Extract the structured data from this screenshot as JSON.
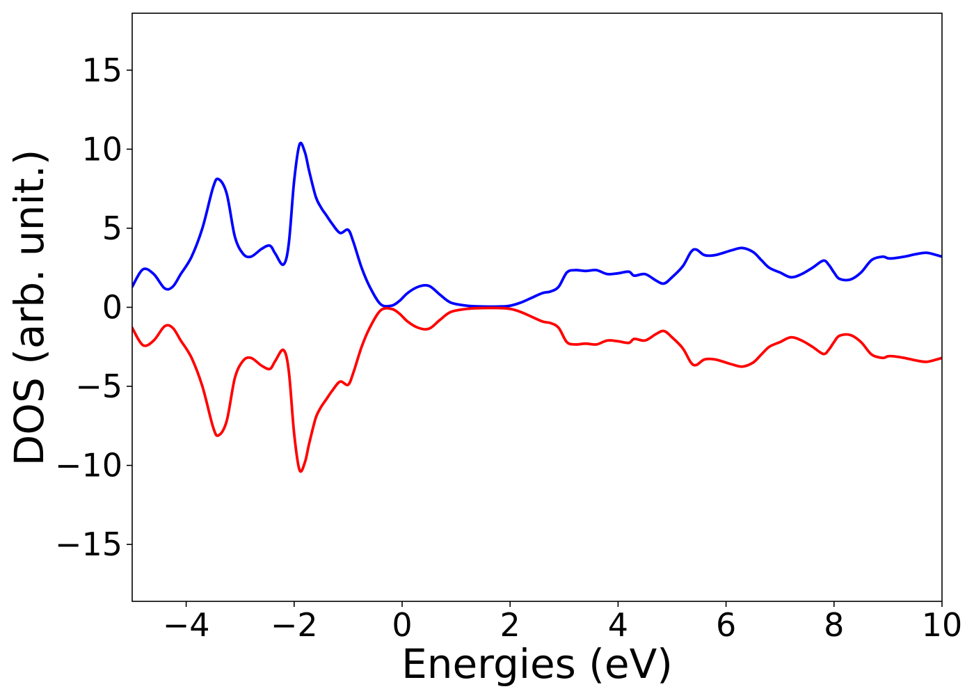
{
  "chart_data": {
    "type": "line",
    "title": "",
    "xlabel": "Energies (eV)",
    "ylabel": "DOS (arb. unit.)",
    "xlim": [
      -5,
      10
    ],
    "ylim": [
      -18.6,
      18.6
    ],
    "xticks": [
      -4,
      -2,
      0,
      2,
      4,
      6,
      8,
      10
    ],
    "xtick_labels": [
      "−4",
      "−2",
      "0",
      "2",
      "4",
      "6",
      "8",
      "10"
    ],
    "yticks": [
      -15,
      -10,
      -5,
      0,
      5,
      10,
      15
    ],
    "ytick_labels": [
      "−15",
      "−10",
      "−5",
      "0",
      "5",
      "10",
      "15"
    ],
    "grid": false,
    "legend": "none",
    "series": [
      {
        "color": "#0000ff",
        "x": [
          -5.0,
          -4.8,
          -4.6,
          -4.4,
          -4.25,
          -4.1,
          -3.9,
          -3.7,
          -3.5,
          -3.4,
          -3.25,
          -3.1,
          -2.95,
          -2.8,
          -2.6,
          -2.45,
          -2.35,
          -2.2,
          -2.1,
          -2.0,
          -1.9,
          -1.8,
          -1.72,
          -1.6,
          -1.5,
          -1.4,
          -1.3,
          -1.15,
          -1.0,
          -0.9,
          -0.75,
          -0.6,
          -0.4,
          -0.2,
          -0.05,
          0.1,
          0.3,
          0.5,
          0.7,
          0.9,
          1.2,
          1.5,
          1.8,
          2.0,
          2.2,
          2.4,
          2.6,
          2.75,
          2.9,
          3.05,
          3.2,
          3.4,
          3.6,
          3.8,
          4.0,
          4.2,
          4.3,
          4.5,
          4.7,
          4.85,
          5.0,
          5.2,
          5.35,
          5.45,
          5.6,
          5.8,
          6.1,
          6.3,
          6.5,
          6.65,
          6.8,
          7.0,
          7.2,
          7.4,
          7.6,
          7.8,
          7.9,
          8.0,
          8.1,
          8.3,
          8.5,
          8.7,
          8.9,
          9.0,
          9.1,
          9.3,
          9.5,
          9.7,
          9.85,
          10.0
        ],
        "y": [
          1.3,
          2.4,
          2.1,
          1.2,
          1.3,
          2.1,
          3.2,
          5.0,
          7.6,
          8.1,
          7.2,
          4.5,
          3.4,
          3.2,
          3.7,
          3.9,
          3.4,
          2.7,
          4.0,
          8.0,
          10.3,
          9.8,
          8.6,
          7.0,
          6.3,
          5.8,
          5.3,
          4.7,
          4.9,
          4.1,
          2.5,
          1.3,
          0.2,
          0.1,
          0.4,
          0.9,
          1.3,
          1.35,
          0.8,
          0.3,
          0.1,
          0.05,
          0.05,
          0.1,
          0.3,
          0.6,
          0.9,
          1.0,
          1.3,
          2.2,
          2.35,
          2.3,
          2.35,
          2.1,
          2.15,
          2.25,
          2.0,
          2.1,
          1.7,
          1.5,
          1.9,
          2.6,
          3.5,
          3.65,
          3.3,
          3.3,
          3.6,
          3.75,
          3.5,
          3.0,
          2.5,
          2.2,
          1.9,
          2.1,
          2.5,
          2.95,
          2.7,
          2.2,
          1.8,
          1.75,
          2.2,
          3.0,
          3.2,
          3.1,
          3.1,
          3.2,
          3.35,
          3.45,
          3.35,
          3.2
        ]
      },
      {
        "color": "#ff0000",
        "x": [
          -5.0,
          -4.8,
          -4.6,
          -4.4,
          -4.25,
          -4.1,
          -3.9,
          -3.7,
          -3.5,
          -3.4,
          -3.25,
          -3.1,
          -2.95,
          -2.8,
          -2.6,
          -2.45,
          -2.35,
          -2.2,
          -2.1,
          -2.0,
          -1.9,
          -1.8,
          -1.72,
          -1.6,
          -1.5,
          -1.4,
          -1.3,
          -1.15,
          -1.0,
          -0.9,
          -0.75,
          -0.6,
          -0.4,
          -0.2,
          -0.05,
          0.1,
          0.3,
          0.5,
          0.7,
          0.9,
          1.2,
          1.5,
          1.8,
          2.0,
          2.2,
          2.4,
          2.6,
          2.75,
          2.9,
          3.05,
          3.2,
          3.4,
          3.6,
          3.8,
          4.0,
          4.2,
          4.3,
          4.5,
          4.7,
          4.85,
          5.0,
          5.2,
          5.35,
          5.45,
          5.6,
          5.8,
          6.1,
          6.3,
          6.5,
          6.65,
          6.8,
          7.0,
          7.2,
          7.4,
          7.6,
          7.8,
          7.9,
          8.0,
          8.1,
          8.3,
          8.5,
          8.7,
          8.9,
          9.0,
          9.1,
          9.3,
          9.5,
          9.7,
          9.85,
          10.0
        ],
        "y": [
          -1.3,
          -2.4,
          -2.1,
          -1.2,
          -1.3,
          -2.1,
          -3.2,
          -5.0,
          -7.6,
          -8.1,
          -7.2,
          -4.5,
          -3.4,
          -3.2,
          -3.7,
          -3.9,
          -3.4,
          -2.7,
          -4.0,
          -8.0,
          -10.3,
          -9.8,
          -8.6,
          -7.0,
          -6.3,
          -5.8,
          -5.3,
          -4.7,
          -4.9,
          -4.1,
          -2.5,
          -1.3,
          -0.2,
          -0.1,
          -0.4,
          -0.9,
          -1.3,
          -1.35,
          -0.8,
          -0.3,
          -0.1,
          -0.05,
          -0.05,
          -0.1,
          -0.3,
          -0.6,
          -0.9,
          -1.0,
          -1.3,
          -2.2,
          -2.35,
          -2.3,
          -2.35,
          -2.1,
          -2.15,
          -2.25,
          -2.0,
          -2.1,
          -1.7,
          -1.5,
          -1.9,
          -2.6,
          -3.5,
          -3.65,
          -3.3,
          -3.3,
          -3.6,
          -3.75,
          -3.5,
          -3.0,
          -2.5,
          -2.2,
          -1.9,
          -2.1,
          -2.5,
          -2.95,
          -2.7,
          -2.2,
          -1.8,
          -1.75,
          -2.2,
          -3.0,
          -3.2,
          -3.1,
          -3.1,
          -3.2,
          -3.35,
          -3.45,
          -3.35,
          -3.2
        ]
      }
    ]
  }
}
